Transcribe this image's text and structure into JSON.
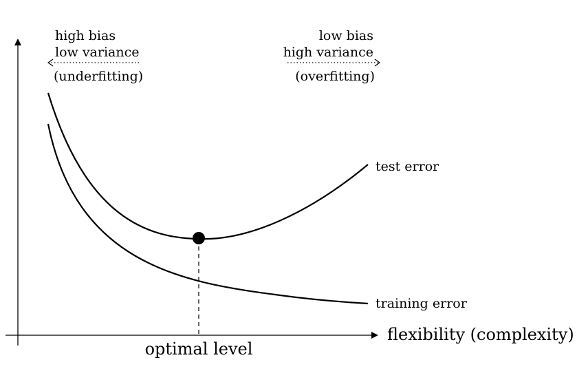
{
  "annotations": {
    "left": {
      "line1": "high bias",
      "line2": "low variance",
      "line3": "(underfitting)"
    },
    "right": {
      "line1": "low bias",
      "line2": "high variance",
      "line3": "(overfitting)"
    }
  },
  "curves": {
    "test_label": "test error",
    "training_label": "training error"
  },
  "axes": {
    "x_label": "flexibility (complexity)",
    "optimal_label": "optimal level"
  },
  "colors": {
    "ink": "#000000",
    "background": "#ffffff"
  }
}
